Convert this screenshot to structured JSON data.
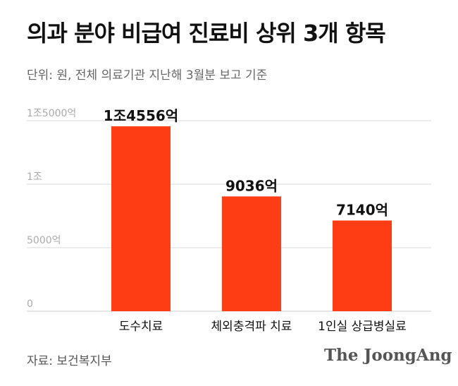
{
  "header": {
    "title": "의과 분야 비급여 진료비 상위 3개 항목",
    "subtitle": "단위: 원, 전체 의료기관 지난해 3월분 보고 기준"
  },
  "footer": {
    "source": "자료: 보건복지부",
    "brand": "The JoongAng"
  },
  "colors": {
    "bar": "#ff3d14",
    "grid": "#d9d9d9",
    "tick": "#aaaaaa"
  },
  "chart_data": {
    "type": "bar",
    "title": "의과 분야 비급여 진료비 상위 3개 항목",
    "subtitle": "단위: 원, 전체 의료기관 지난해 3월분 보고 기준",
    "xlabel": "",
    "ylabel": "",
    "ylim": [
      0,
      1500000000000
    ],
    "grid": true,
    "categories": [
      "도수치료",
      "체외충격파 치료",
      "1인실 상급병실료"
    ],
    "values": [
      1455600000000,
      903600000000,
      714000000000
    ],
    "value_labels": [
      "1조4556억",
      "9036억",
      "7140억"
    ],
    "yticks": [
      {
        "value": 0,
        "label": "0"
      },
      {
        "value": 500000000000,
        "label": "5000억"
      },
      {
        "value": 1000000000000,
        "label": "1조"
      },
      {
        "value": 1500000000000,
        "label": "1조5000억"
      }
    ]
  }
}
